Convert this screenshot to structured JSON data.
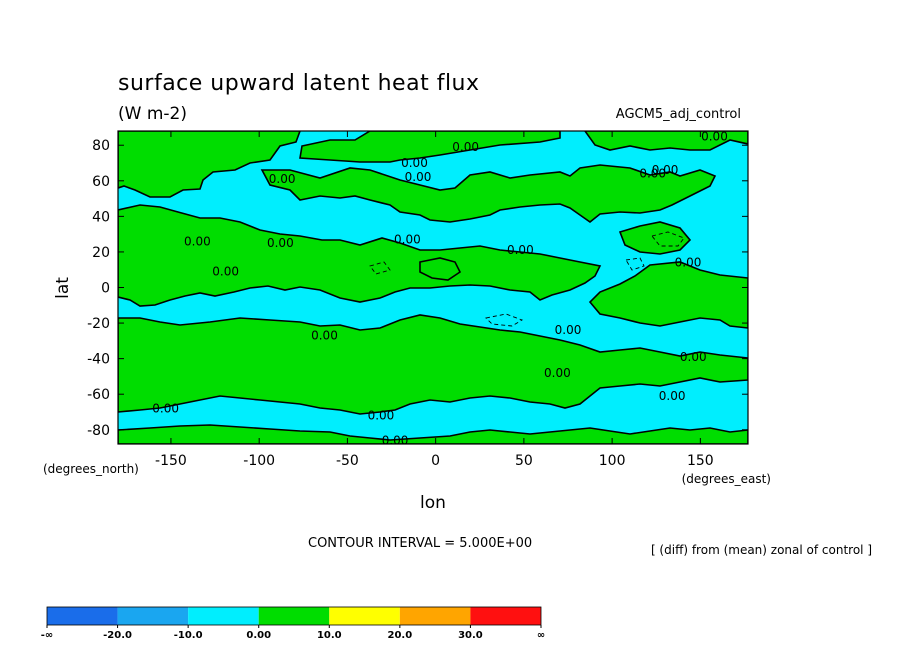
{
  "chart_data": {
    "type": "heatmap",
    "title": "surface upward latent heat flux",
    "subtitle": "(W m-2)",
    "model_label": "AGCM5_adj_control",
    "xlabel": "lon",
    "ylabel": "lat",
    "x_units": "(degrees_east)",
    "y_units": "(degrees_north)",
    "xlim": [
      -180,
      177
    ],
    "ylim": [
      -88,
      88
    ],
    "x_ticks": [
      "-150",
      "-100",
      "-50",
      "0",
      "50",
      "100",
      "150"
    ],
    "x_tick_values": [
      -150,
      -100,
      -50,
      0,
      50,
      100,
      150
    ],
    "y_ticks": [
      "80",
      "60",
      "40",
      "20",
      "0",
      "-20",
      "-40",
      "-60",
      "-80"
    ],
    "y_tick_values": [
      80,
      60,
      40,
      20,
      0,
      -20,
      -40,
      -60,
      -80
    ],
    "contour_interval_text": "CONTOUR INTERVAL = 5.000E+00",
    "operation_note": "[ (diff) from (mean) zonal of control ]",
    "contour_label": "0.00",
    "contour_labels": [
      {
        "lon": 123,
        "lat": 64,
        "text": "0.00"
      },
      {
        "lon": -87,
        "lat": 61,
        "text": "0.00"
      },
      {
        "lon": -12,
        "lat": 70,
        "text": "0.00"
      },
      {
        "lon": 17,
        "lat": 79,
        "text": "0.00"
      },
      {
        "lon": -10,
        "lat": 62,
        "text": "0.00"
      },
      {
        "lon": 158,
        "lat": 85,
        "text": "0.00"
      },
      {
        "lon": 130,
        "lat": 66,
        "text": "0.00"
      },
      {
        "lon": -135,
        "lat": 26,
        "text": "0.00"
      },
      {
        "lon": -88,
        "lat": 25,
        "text": "0.00"
      },
      {
        "lon": -16,
        "lat": 27,
        "text": "0.00"
      },
      {
        "lon": 48,
        "lat": 21,
        "text": "0.00"
      },
      {
        "lon": 143,
        "lat": 14,
        "text": "0.00"
      },
      {
        "lon": -119,
        "lat": 9,
        "text": "0.00"
      },
      {
        "lon": -63,
        "lat": -27,
        "text": "0.00"
      },
      {
        "lon": 75,
        "lat": -24,
        "text": "0.00"
      },
      {
        "lon": 146,
        "lat": -39,
        "text": "0.00"
      },
      {
        "lon": 69,
        "lat": -48,
        "text": "0.00"
      },
      {
        "lon": 134,
        "lat": -61,
        "text": "0.00"
      },
      {
        "lon": -153,
        "lat": -68,
        "text": "0.00"
      },
      {
        "lon": -31,
        "lat": -72,
        "text": "0.00"
      },
      {
        "lon": -23,
        "lat": -86,
        "text": "0.00"
      }
    ],
    "colorbar": {
      "colors": [
        "#1a6dea",
        "#1aa6f0",
        "#00eefe",
        "#00dd00",
        "#ffff00",
        "#ffa500",
        "#ff1010"
      ],
      "tick_labels": [
        "-∞",
        "-20.0",
        "-10.0",
        "0.00",
        "10.0",
        "20.0",
        "30.0",
        "∞"
      ],
      "boundaries": [
        null,
        -20,
        -10,
        0,
        10,
        20,
        30,
        null
      ]
    },
    "fill_colors": {
      "negative": "#00eefe",
      "positive": "#00dd00"
    },
    "values_by_lat_row": {
      "lat": [
        82,
        72,
        62,
        52,
        42,
        32,
        22,
        12,
        2,
        -8,
        -18,
        -28,
        -38,
        -48,
        -58,
        -68,
        -78,
        -86
      ],
      "sign_note": "fill alternates between the 0 to 10 class (green) and the -10 to 0 class (cyan)"
    }
  }
}
